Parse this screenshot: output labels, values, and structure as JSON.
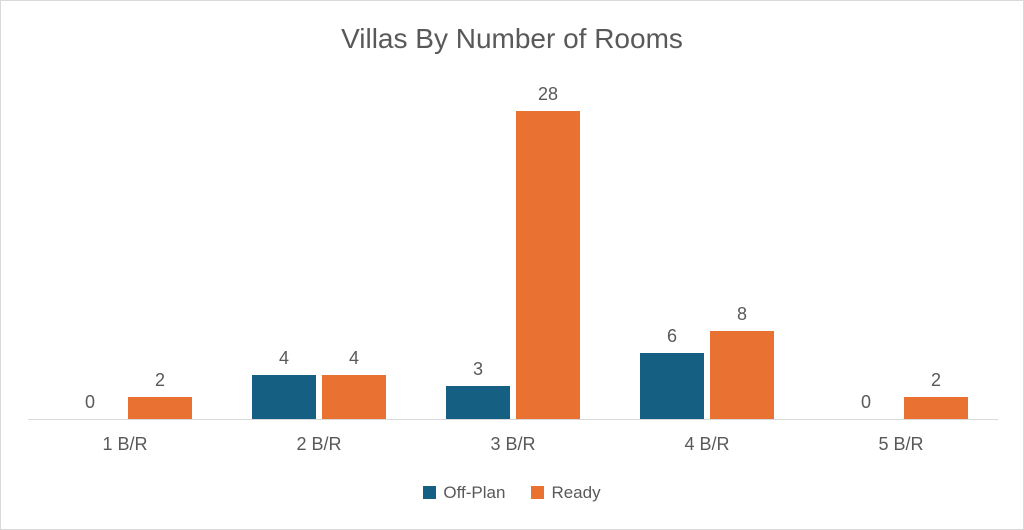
{
  "chart_data": {
    "type": "bar",
    "title": "Villas By Number of Rooms",
    "categories": [
      "1 B/R",
      "2 B/R",
      "3 B/R",
      "4 B/R",
      "5 B/R"
    ],
    "series": [
      {
        "name": "Off-Plan",
        "color": "#156082",
        "values": [
          0,
          4,
          3,
          6,
          0
        ]
      },
      {
        "name": "Ready",
        "color": "#E97132",
        "values": [
          2,
          4,
          28,
          8,
          2
        ]
      }
    ],
    "xlabel": "",
    "ylabel": "",
    "ylim": [
      0,
      30
    ],
    "grid": false,
    "y_axis_visible": false,
    "data_labels": true,
    "legend_position": "bottom",
    "colors": {
      "label_text": "#595959",
      "axis_line": "#d9d9d9",
      "frame_border": "#d9d9d9",
      "background": "#ffffff"
    }
  }
}
